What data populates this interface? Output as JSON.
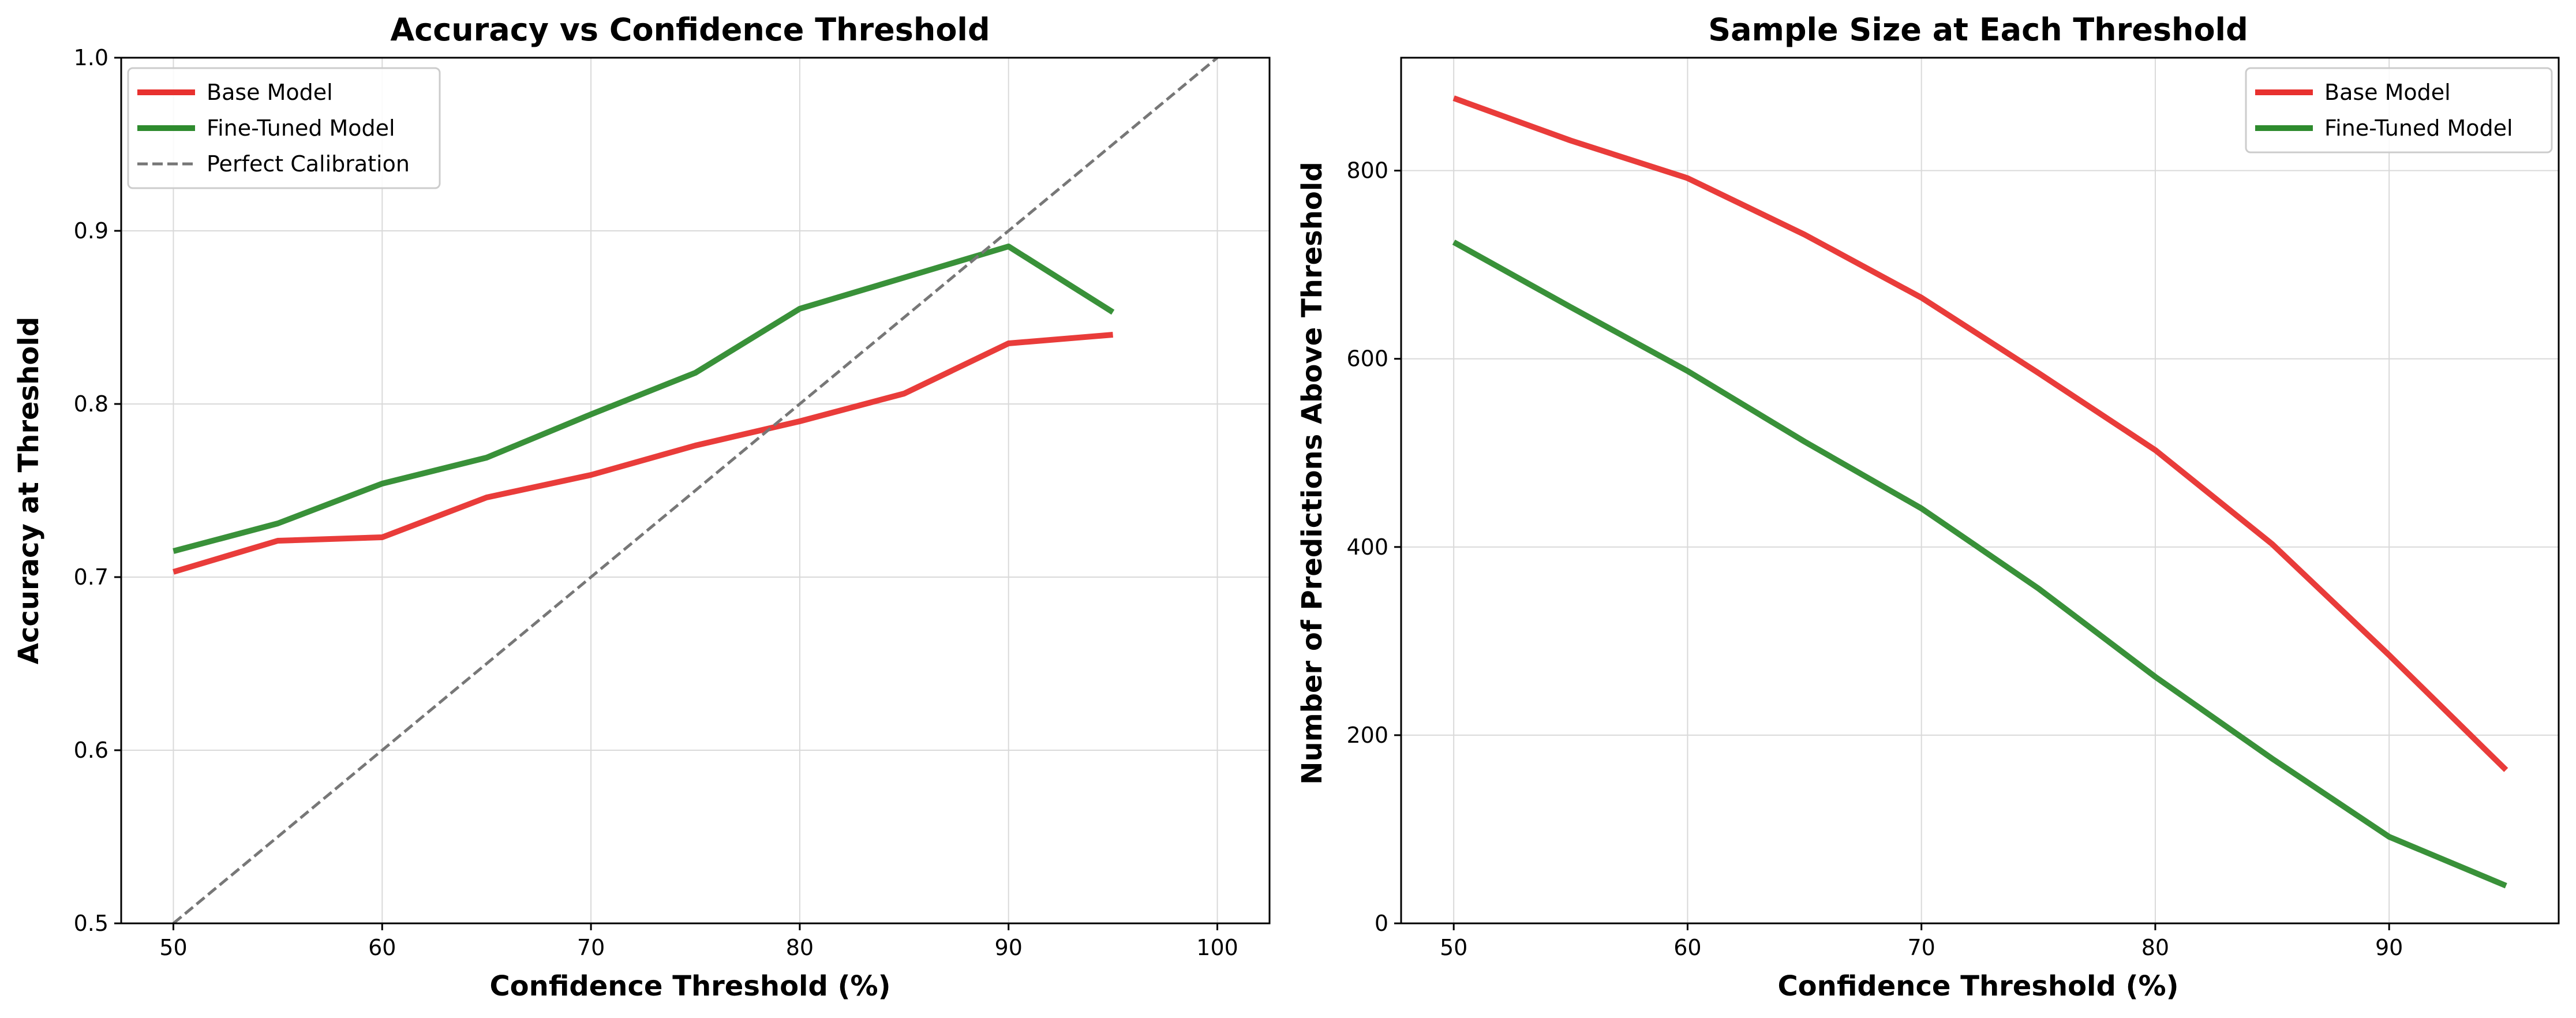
{
  "chart_data": [
    {
      "type": "line",
      "title": "Accuracy vs Confidence Threshold",
      "xlabel": "Confidence Threshold (%)",
      "ylabel": "Accuracy at Threshold",
      "xlim": [
        47.5,
        102.5
      ],
      "ylim": [
        0.5,
        1.0
      ],
      "xticks": [
        "50",
        "60",
        "70",
        "80",
        "90",
        "100"
      ],
      "yticks": [
        "0.5",
        "0.6",
        "0.7",
        "0.8",
        "0.9",
        "1.0"
      ],
      "grid": true,
      "legend_position": "upper-left",
      "series": [
        {
          "name": "Base Model",
          "color": "#e8312f",
          "style": "solid",
          "x": [
            50,
            55,
            60,
            65,
            70,
            75,
            80,
            85,
            90,
            95
          ],
          "y": [
            0.703,
            0.721,
            0.723,
            0.746,
            0.759,
            0.776,
            0.79,
            0.806,
            0.835,
            0.84
          ]
        },
        {
          "name": "Fine-Tuned Model",
          "color": "#2e8b2e",
          "style": "solid",
          "x": [
            50,
            55,
            60,
            65,
            70,
            75,
            80,
            85,
            90,
            95
          ],
          "y": [
            0.715,
            0.731,
            0.754,
            0.769,
            0.794,
            0.818,
            0.855,
            0.873,
            0.891,
            0.853
          ]
        },
        {
          "name": "Perfect Calibration",
          "color": "#777777",
          "style": "dashed",
          "x": [
            50,
            100
          ],
          "y": [
            0.5,
            1.0
          ]
        }
      ]
    },
    {
      "type": "line",
      "title": "Sample Size at Each Threshold",
      "xlabel": "Confidence Threshold (%)",
      "ylabel": "Number of Predictions Above Threshold",
      "xlim": [
        47.75,
        97.25
      ],
      "ylim": [
        0,
        920
      ],
      "xticks": [
        "50",
        "60",
        "70",
        "80",
        "90"
      ],
      "yticks": [
        "0",
        "200",
        "400",
        "600",
        "800"
      ],
      "grid": true,
      "legend_position": "upper-right",
      "series": [
        {
          "name": "Base Model",
          "color": "#e8312f",
          "style": "solid",
          "x": [
            50,
            55,
            60,
            65,
            70,
            75,
            80,
            85,
            90,
            95
          ],
          "y": [
            877,
            832,
            792,
            732,
            665,
            585,
            503,
            403,
            285,
            163
          ]
        },
        {
          "name": "Fine-Tuned Model",
          "color": "#2e8b2e",
          "style": "solid",
          "x": [
            50,
            55,
            60,
            65,
            70,
            75,
            80,
            85,
            90,
            95
          ],
          "y": [
            724,
            655,
            587,
            512,
            441,
            356,
            262,
            175,
            92,
            40
          ]
        }
      ]
    }
  ]
}
